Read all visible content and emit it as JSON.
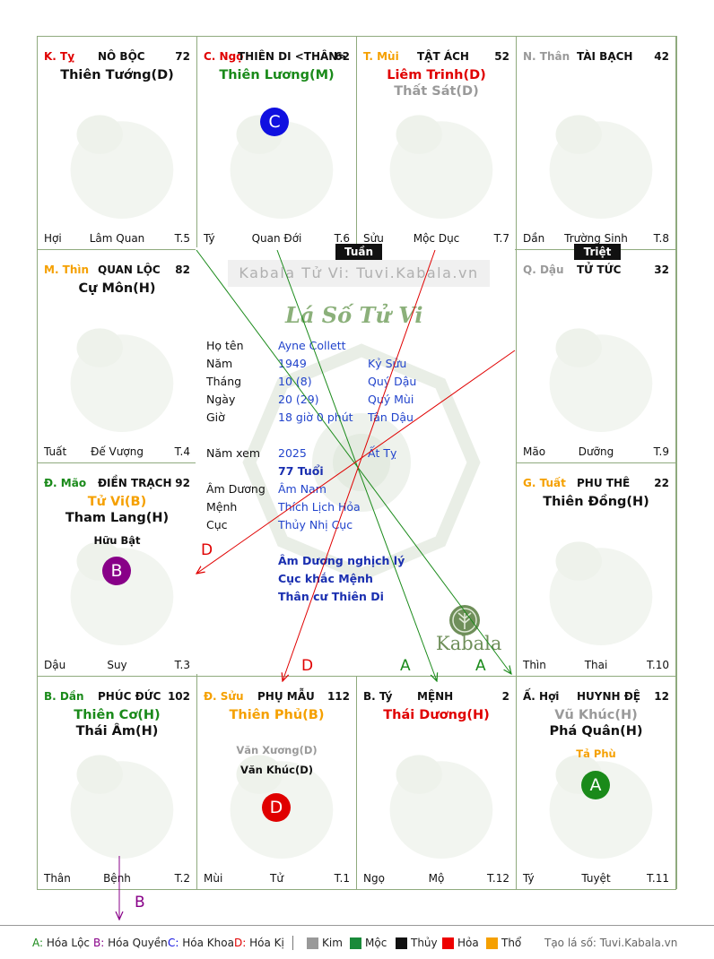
{
  "watermark": "Kabala Tử Vi: Tuvi.Kabala.vn",
  "center_title": "Lá Số Tử Vi",
  "center_logo": "Kabala",
  "tags": {
    "tuan": "Tuần",
    "triet": "Triệt"
  },
  "info": {
    "ho_ten": {
      "label": "Họ tên",
      "value": "Ayne Collett"
    },
    "nam": {
      "label": "Năm",
      "value": "1949",
      "can_chi": "Kỷ Sửu"
    },
    "thang": {
      "label": "Tháng",
      "value": "10  (8)",
      "can_chi": "Quý Dậu"
    },
    "ngay": {
      "label": "Ngày",
      "value": "20  (29)",
      "can_chi": "Quý Mùi"
    },
    "gio": {
      "label": "Giờ",
      "value": "18 giờ 0 phút",
      "can_chi": "Tân Dậu"
    },
    "nam_xem": {
      "label": "Năm xem",
      "value": "2025",
      "can_chi": "Ất Tỵ"
    },
    "tuoi": "77 Tuổi",
    "am_duong": {
      "label": "Âm Dương",
      "value": "Âm Nam"
    },
    "menh": {
      "label": "Mệnh",
      "value": "Thích Lịch Hỏa"
    },
    "cuc": {
      "label": "Cục",
      "value": "Thủy Nhị Cục"
    },
    "notes": [
      "Âm Dương nghịch lý",
      "Cục khắc Mệnh",
      "Thân cư Thiên Di"
    ]
  },
  "palaces": {
    "ty_snake": {
      "stem": "K. Tỵ",
      "stem_color": "#e00000",
      "name": "NÔ BỘC",
      "score": "72",
      "stars": [
        {
          "t": "Thiên Tướng(D)",
          "c": "c-black"
        }
      ],
      "minor": [],
      "foot": [
        "Hợi",
        "Lâm Quan",
        "T.5"
      ]
    },
    "ngo_horse": {
      "stem": "C. Ngọ",
      "stem_color": "#e00000",
      "name": "THIÊN DI <THÂN>",
      "score": "62",
      "stars": [
        {
          "t": "Thiên Lương(M)",
          "c": "c-green"
        }
      ],
      "minor": [],
      "circle": {
        "letter": "C",
        "color": "#1010e0"
      },
      "foot": [
        "Tý",
        "Quan Đới",
        "T.6"
      ]
    },
    "mui_goat": {
      "stem": "T. Mùi",
      "stem_color": "#f5a000",
      "name": "TẬT ÁCH",
      "score": "52",
      "stars": [
        {
          "t": "Liêm Trinh(D)",
          "c": "c-red"
        },
        {
          "t": "Thất Sát(D)",
          "c": "c-gray"
        }
      ],
      "minor": [],
      "foot": [
        "Sửu",
        "Mộc Dục",
        "T.7"
      ]
    },
    "than_monkey": {
      "stem": "N. Thân",
      "stem_color": "#9a9a9a",
      "name": "TÀI BẠCH",
      "score": "42",
      "stars": [],
      "minor": [],
      "foot": [
        "Dần",
        "Trường Sinh",
        "T.8"
      ]
    },
    "thin_dragon": {
      "stem": "M. Thìn",
      "stem_color": "#f5a000",
      "name": "QUAN LỘC",
      "score": "82",
      "stars": [
        {
          "t": "Cự Môn(H)",
          "c": "c-black"
        }
      ],
      "minor": [],
      "foot": [
        "Tuất",
        "Đế Vượng",
        "T.4"
      ]
    },
    "dau_rooster": {
      "stem": "Q. Dậu",
      "stem_color": "#9a9a9a",
      "name": "TỬ TỨC",
      "score": "32",
      "stars": [],
      "minor": [],
      "foot": [
        "Mão",
        "Dưỡng",
        "T.9"
      ]
    },
    "mao_cat": {
      "stem": "Đ. Mão",
      "stem_color": "#1a8a1a",
      "name": "ĐIỀN TRẠCH",
      "score": "92",
      "stars": [
        {
          "t": "Tử Vi(B)",
          "c": "c-orange"
        },
        {
          "t": "Tham Lang(H)",
          "c": "c-black"
        }
      ],
      "minor": [
        {
          "t": "Hữu Bật",
          "c": "c-black"
        }
      ],
      "circle": {
        "letter": "B",
        "color": "#880088"
      },
      "foot": [
        "Dậu",
        "Suy",
        "T.3"
      ]
    },
    "tuat_dog": {
      "stem": "G. Tuất",
      "stem_color": "#f5a000",
      "name": "PHU THÊ",
      "score": "22",
      "stars": [
        {
          "t": "Thiên Đồng(H)",
          "c": "c-black"
        }
      ],
      "minor": [],
      "foot": [
        "Thìn",
        "Thai",
        "T.10"
      ]
    },
    "dan_tiger": {
      "stem": "B. Dần",
      "stem_color": "#1a8a1a",
      "name": "PHÚC ĐỨC",
      "score": "102",
      "stars": [
        {
          "t": "Thiên Cơ(H)",
          "c": "c-green"
        },
        {
          "t": "Thái Âm(H)",
          "c": "c-black"
        }
      ],
      "minor": [],
      "foot": [
        "Thân",
        "Bệnh",
        "T.2"
      ]
    },
    "suu_buffalo": {
      "stem": "Đ. Sửu",
      "stem_color": "#f5a000",
      "name": "PHỤ MẪU",
      "score": "112",
      "stars": [
        {
          "t": "Thiên Phủ(B)",
          "c": "c-orange"
        }
      ],
      "minor": [
        {
          "t": "Văn Xương(D)",
          "c": "c-gray"
        },
        {
          "t": "Văn Khúc(D)",
          "c": "c-black"
        }
      ],
      "circle": {
        "letter": "D",
        "color": "#e00000"
      },
      "foot": [
        "Mùi",
        "Tử",
        "T.1"
      ]
    },
    "ty_rat": {
      "stem": "B. Tý",
      "stem_color": "#111111",
      "name": "MỆNH",
      "score": "2",
      "stars": [
        {
          "t": "Thái Dương(H)",
          "c": "c-red"
        }
      ],
      "minor": [],
      "foot": [
        "Ngọ",
        "Mộ",
        "T.12"
      ]
    },
    "hoi_pig": {
      "stem": "Ấ. Hợi",
      "stem_color": "#111111",
      "name": "HUYNH ĐỆ",
      "score": "12",
      "stars": [
        {
          "t": "Vũ Khúc(H)",
          "c": "c-gray"
        },
        {
          "t": "Phá Quân(H)",
          "c": "c-black"
        }
      ],
      "minor": [
        {
          "t": "Tả Phù",
          "c": "c-orange"
        }
      ],
      "circle": {
        "letter": "A",
        "color": "#1a8a1a"
      },
      "foot": [
        "Tý",
        "Tuyệt",
        "T.11"
      ]
    }
  },
  "arrow_labels": {
    "d1": "D",
    "d2": "D",
    "a1": "A",
    "a2": "A",
    "b": "B"
  },
  "legend": {
    "a": {
      "k": "A:",
      "v": "Hóa Lộc"
    },
    "b": {
      "k": "B:",
      "v": "Hóa Quyền"
    },
    "c": {
      "k": "C:",
      "v": "Hóa Khoa"
    },
    "d": {
      "k": "D:",
      "v": "Hóa Kị"
    },
    "kim": "Kim",
    "moc": "Mộc",
    "thuy": "Thủy",
    "hoa": "Hỏa",
    "tho": "Thổ",
    "site": "Tạo lá số: Tuvi.Kabala.vn",
    "colors": {
      "kim": "#999999",
      "moc": "#1a8a3a",
      "thuy": "#111111",
      "hoa": "#ee0000",
      "tho": "#f5a000"
    }
  }
}
